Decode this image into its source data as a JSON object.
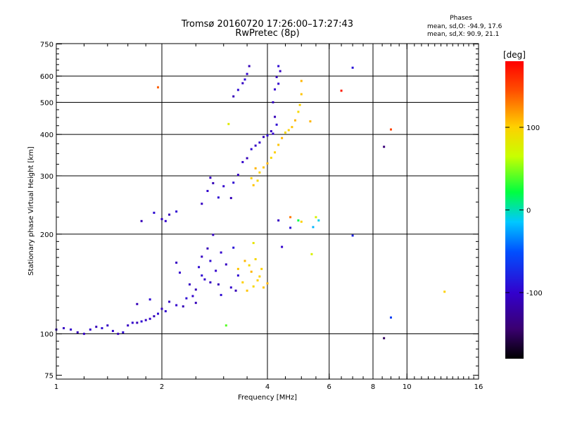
{
  "chart_data": {
    "type": "scatter",
    "title": "Tromsø 20160720 17:26:00–17:27:43",
    "subtitle": "RwPretec (8p)",
    "xlabel": "Frequency [MHz]",
    "ylabel": "Stationary phase Virtual Height [km]",
    "xscale": "log",
    "yscale": "log",
    "xlim": [
      1,
      16
    ],
    "ylim": [
      73,
      752
    ],
    "x_ticks": [
      1,
      2,
      4,
      6,
      8,
      10,
      16
    ],
    "y_ticks": [
      75,
      100,
      200,
      300,
      400,
      500,
      600,
      750
    ],
    "x_grid": [
      2,
      4,
      6,
      8,
      10
    ],
    "y_grid": [
      100,
      200,
      300,
      400,
      500,
      600
    ],
    "grid": true,
    "phases": {
      "label": "Phases",
      "o_line": "mean, sd,O: -94.9, 17.6",
      "x_line": "mean, sd,X:  90.9, 21.1"
    },
    "colorbar": {
      "label": "[deg]",
      "ticks": [
        100,
        0,
        -100
      ],
      "range": [
        -180,
        180
      ],
      "colormap": "rainbow (black → purple → blue → cyan → green → yellow → red)"
    },
    "series": [
      {
        "points": [
          [
            1.0,
            103,
            -110
          ],
          [
            1.05,
            104,
            -105
          ],
          [
            1.1,
            103,
            -100
          ],
          [
            1.15,
            101,
            -110
          ],
          [
            1.2,
            100,
            -105
          ],
          [
            1.25,
            103,
            -100
          ],
          [
            1.3,
            105,
            -110
          ],
          [
            1.35,
            104,
            -95
          ],
          [
            1.4,
            106,
            -105
          ],
          [
            1.45,
            102,
            -100
          ],
          [
            1.5,
            100,
            -110
          ],
          [
            1.55,
            101,
            -95
          ],
          [
            1.6,
            106,
            -105
          ],
          [
            1.65,
            108,
            -100
          ],
          [
            1.7,
            108,
            -110
          ],
          [
            1.75,
            109,
            -95
          ],
          [
            1.8,
            110,
            -105
          ],
          [
            1.85,
            111,
            -100
          ],
          [
            1.9,
            113,
            -110
          ],
          [
            1.95,
            115,
            -95
          ],
          [
            2.0,
            119,
            -105
          ],
          [
            2.05,
            117,
            -100
          ],
          [
            1.7,
            123,
            -110
          ],
          [
            1.85,
            127,
            -95
          ],
          [
            2.1,
            125,
            -105
          ],
          [
            2.2,
            122,
            -100
          ],
          [
            2.3,
            121,
            -110
          ],
          [
            2.35,
            128,
            -95
          ],
          [
            2.4,
            141,
            -105
          ],
          [
            2.45,
            130,
            -100
          ],
          [
            2.5,
            136,
            -110
          ],
          [
            2.55,
            159,
            -95
          ],
          [
            2.6,
            171,
            -105
          ],
          [
            2.65,
            146,
            -100
          ],
          [
            2.7,
            181,
            -110
          ],
          [
            2.75,
            166,
            -95
          ],
          [
            2.8,
            199,
            -105
          ],
          [
            2.85,
            155,
            -100
          ],
          [
            2.9,
            141,
            -110
          ],
          [
            2.95,
            131,
            -95
          ],
          [
            3.05,
            162,
            -105
          ],
          [
            3.15,
            138,
            -100
          ],
          [
            3.25,
            135,
            -110
          ],
          [
            3.3,
            150,
            -95
          ],
          [
            2.2,
            164,
            -105
          ],
          [
            2.25,
            153,
            -100
          ],
          [
            2.5,
            124,
            -110
          ],
          [
            2.6,
            150,
            -95
          ],
          [
            2.75,
            143,
            -105
          ],
          [
            2.95,
            176,
            -100
          ],
          [
            1.75,
            219,
            -110
          ],
          [
            1.9,
            232,
            -95
          ],
          [
            2.0,
            222,
            -105
          ],
          [
            2.05,
            219,
            -100
          ],
          [
            2.1,
            229,
            -110
          ],
          [
            2.2,
            234,
            -95
          ],
          [
            2.6,
            247,
            -105
          ],
          [
            2.7,
            270,
            -100
          ],
          [
            2.8,
            285,
            -110
          ],
          [
            2.9,
            258,
            -95
          ],
          [
            2.75,
            296,
            -105
          ],
          [
            3.0,
            279,
            -100
          ],
          [
            3.15,
            257,
            -110
          ],
          [
            3.2,
            286,
            -95
          ],
          [
            3.3,
            302,
            -105
          ],
          [
            3.4,
            330,
            -100
          ],
          [
            3.5,
            339,
            -110
          ],
          [
            3.6,
            361,
            -95
          ],
          [
            3.7,
            370,
            -105
          ],
          [
            3.8,
            378,
            -100
          ],
          [
            3.9,
            393,
            -110
          ],
          [
            4.0,
            397,
            -95
          ],
          [
            4.1,
            409,
            -105
          ],
          [
            4.15,
            402,
            -100
          ],
          [
            3.2,
            521,
            -110
          ],
          [
            3.3,
            545,
            -95
          ],
          [
            3.4,
            571,
            -105
          ],
          [
            3.5,
            609,
            -100
          ],
          [
            3.55,
            643,
            -110
          ],
          [
            3.45,
            586,
            -95
          ],
          [
            4.15,
            500,
            -105
          ],
          [
            4.2,
            547,
            -100
          ],
          [
            4.25,
            596,
            -110
          ],
          [
            4.3,
            643,
            -95
          ],
          [
            4.35,
            621,
            -105
          ],
          [
            4.3,
            569,
            -100
          ],
          [
            4.2,
            452,
            -110
          ],
          [
            4.25,
            428,
            -95
          ]
        ]
      },
      {
        "points": [
          [
            3.6,
            295,
            100
          ],
          [
            3.65,
            281,
            105
          ],
          [
            3.7,
            316,
            110
          ],
          [
            3.75,
            290,
            95
          ],
          [
            3.8,
            307,
            100
          ],
          [
            3.9,
            318,
            105
          ],
          [
            4.0,
            327,
            110
          ],
          [
            4.1,
            340,
            95
          ],
          [
            4.2,
            353,
            100
          ],
          [
            4.3,
            372,
            105
          ],
          [
            4.4,
            390,
            110
          ],
          [
            4.5,
            405,
            95
          ],
          [
            4.6,
            412,
            100
          ],
          [
            4.7,
            421,
            105
          ],
          [
            4.8,
            441,
            110
          ],
          [
            4.9,
            468,
            95
          ],
          [
            4.95,
            491,
            100
          ],
          [
            5.0,
            529,
            105
          ],
          [
            5.0,
            580,
            110
          ],
          [
            3.4,
            143,
            100
          ],
          [
            3.5,
            135,
            105
          ],
          [
            3.6,
            154,
            110
          ],
          [
            3.7,
            168,
            95
          ],
          [
            3.8,
            149,
            100
          ],
          [
            3.9,
            138,
            105
          ],
          [
            4.0,
            142,
            110
          ],
          [
            3.55,
            161,
            95
          ],
          [
            3.75,
            145,
            100
          ],
          [
            3.3,
            157,
            105
          ],
          [
            3.45,
            166,
            110
          ],
          [
            3.65,
            139,
            95
          ],
          [
            3.85,
            157,
            100
          ]
        ]
      },
      {
        "points": [
          [
            1.95,
            555,
            140
          ],
          [
            4.65,
            225,
            130
          ],
          [
            5.35,
            174,
            75
          ],
          [
            5.5,
            225,
            75
          ],
          [
            5.3,
            438,
            110
          ],
          [
            5.0,
            218,
            100
          ],
          [
            3.65,
            188,
            85
          ],
          [
            4.65,
            209,
            -90
          ],
          [
            4.4,
            183,
            -100
          ],
          [
            7.0,
            198,
            -80
          ],
          [
            7.0,
            636,
            -90
          ],
          [
            6.5,
            542,
            170
          ],
          [
            8.6,
            367,
            -140
          ],
          [
            9.0,
            414,
            150
          ],
          [
            8.6,
            97,
            -150
          ],
          [
            9.0,
            112,
            -60
          ],
          [
            12.8,
            134,
            100
          ],
          [
            3.05,
            106,
            40
          ],
          [
            3.1,
            430,
            80
          ],
          [
            5.4,
            210,
            -20
          ],
          [
            5.6,
            220,
            -10
          ],
          [
            3.2,
            182,
            -90
          ],
          [
            4.9,
            220,
            20
          ],
          [
            4.3,
            220,
            -105
          ]
        ]
      }
    ]
  }
}
